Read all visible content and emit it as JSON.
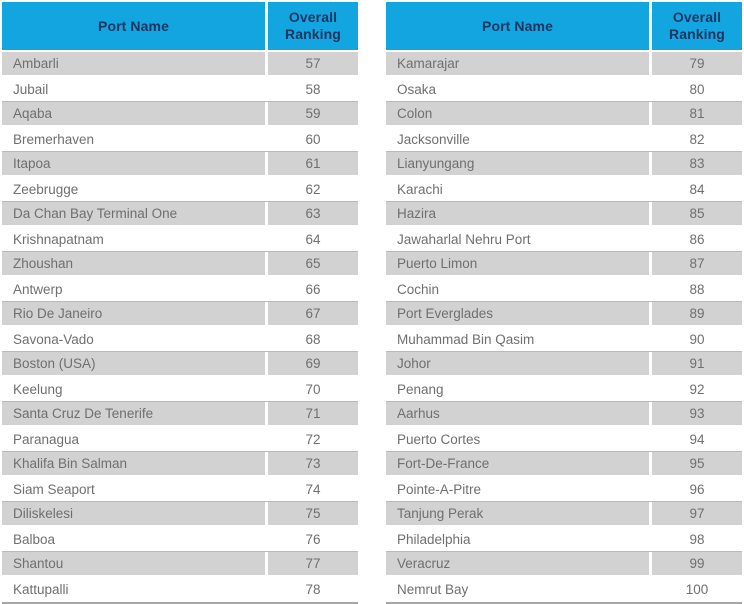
{
  "colors": {
    "header_bg": "#12A5DF",
    "header_text": "#1B3663",
    "row_alt_bg": "#D2D2D2",
    "row_bg": "#FFFFFF",
    "row_text": "#6F6F6F",
    "divider": "#FFFFFF",
    "row_line": "#B9B9B9",
    "table_bottom_border": "#A8A8A8"
  },
  "tables": [
    {
      "id": "left",
      "headers": {
        "port": "Port Name",
        "ranking": "Overall Ranking"
      },
      "rows": [
        {
          "name": "Ambarli",
          "rank": "57"
        },
        {
          "name": "Jubail",
          "rank": "58"
        },
        {
          "name": "Aqaba",
          "rank": "59"
        },
        {
          "name": "Bremerhaven",
          "rank": "60"
        },
        {
          "name": "Itapoa",
          "rank": "61"
        },
        {
          "name": "Zeebrugge",
          "rank": "62"
        },
        {
          "name": "Da Chan Bay Terminal One",
          "rank": "63"
        },
        {
          "name": "Krishnapatnam",
          "rank": "64"
        },
        {
          "name": "Zhoushan",
          "rank": "65"
        },
        {
          "name": "Antwerp",
          "rank": "66"
        },
        {
          "name": "Rio De Janeiro",
          "rank": "67"
        },
        {
          "name": "Savona-Vado",
          "rank": "68"
        },
        {
          "name": "Boston (USA)",
          "rank": "69"
        },
        {
          "name": "Keelung",
          "rank": "70"
        },
        {
          "name": "Santa Cruz De Tenerife",
          "rank": "71"
        },
        {
          "name": "Paranagua",
          "rank": "72"
        },
        {
          "name": "Khalifa Bin Salman",
          "rank": "73"
        },
        {
          "name": "Siam Seaport",
          "rank": "74"
        },
        {
          "name": "Diliskelesi",
          "rank": "75"
        },
        {
          "name": "Balboa",
          "rank": "76"
        },
        {
          "name": "Shantou",
          "rank": "77"
        },
        {
          "name": "Kattupalli",
          "rank": "78"
        }
      ]
    },
    {
      "id": "right",
      "headers": {
        "port": "Port Name",
        "ranking": "Overall Ranking"
      },
      "rows": [
        {
          "name": "Kamarajar",
          "rank": "79"
        },
        {
          "name": "Osaka",
          "rank": "80"
        },
        {
          "name": "Colon",
          "rank": "81"
        },
        {
          "name": "Jacksonville",
          "rank": "82"
        },
        {
          "name": "Lianyungang",
          "rank": "83"
        },
        {
          "name": "Karachi",
          "rank": "84"
        },
        {
          "name": "Hazira",
          "rank": "85"
        },
        {
          "name": "Jawaharlal Nehru Port",
          "rank": "86"
        },
        {
          "name": "Puerto Limon",
          "rank": "87"
        },
        {
          "name": "Cochin",
          "rank": "88"
        },
        {
          "name": "Port Everglades",
          "rank": "89"
        },
        {
          "name": "Muhammad Bin Qasim",
          "rank": "90"
        },
        {
          "name": "Johor",
          "rank": "91"
        },
        {
          "name": "Penang",
          "rank": "92"
        },
        {
          "name": "Aarhus",
          "rank": "93"
        },
        {
          "name": "Puerto Cortes",
          "rank": "94"
        },
        {
          "name": "Fort-De-France",
          "rank": "95"
        },
        {
          "name": "Pointe-A-Pitre",
          "rank": "96"
        },
        {
          "name": "Tanjung Perak",
          "rank": "97"
        },
        {
          "name": "Philadelphia",
          "rank": "98"
        },
        {
          "name": "Veracruz",
          "rank": "99"
        },
        {
          "name": "Nemrut Bay",
          "rank": "100"
        }
      ]
    }
  ]
}
